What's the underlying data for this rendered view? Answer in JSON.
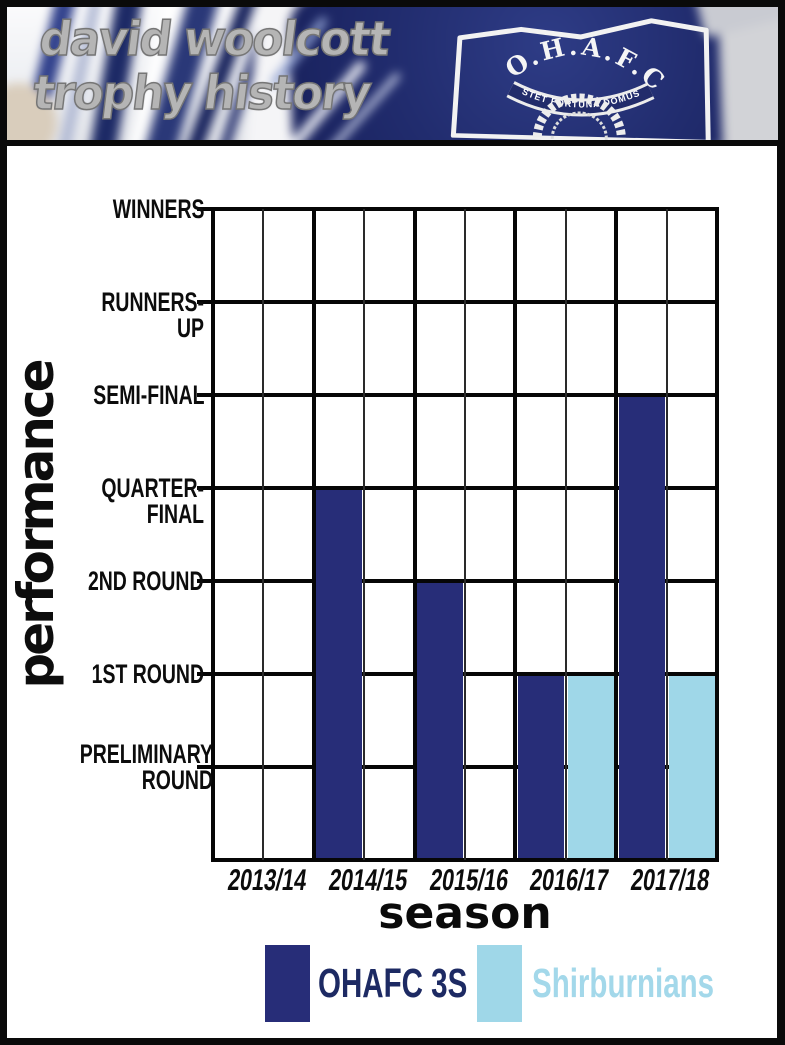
{
  "header": {
    "title_line1": "david woolcott",
    "title_line2": "trophy history",
    "badge": {
      "club_initials": "O.H.A.F.C.",
      "motto": "STET FORTUNA DOMUS"
    }
  },
  "chart_data": {
    "type": "bar",
    "title": "david woolcott trophy history",
    "xlabel": "season",
    "ylabel": "performance",
    "categories": [
      "2013/14",
      "2014/15",
      "2015/16",
      "2016/17",
      "2017/18"
    ],
    "y_tick_labels_top_to_bottom": [
      "WINNERS",
      "RUNNERS-UP",
      "SEMI-FINAL",
      "QUARTER-FINAL",
      "2ND ROUND",
      "1ST ROUND",
      "PRELIMINARY ROUND"
    ],
    "y_value_map": {
      "PRELIMINARY ROUND": 1,
      "1ST ROUND": 2,
      "2ND ROUND": 3,
      "QUARTER-FINAL": 4,
      "SEMI-FINAL": 5,
      "RUNNERS-UP": 6,
      "WINNERS": 7
    },
    "ylim": [
      0,
      7
    ],
    "grid": true,
    "legend_position": "bottom",
    "series": [
      {
        "name": "OHAFC 3S",
        "color": "#272d78",
        "text_color": "#1d2a63",
        "values": [
          0,
          4,
          3,
          2,
          5
        ],
        "result_labels": [
          "",
          "QUARTER-FINAL",
          "2ND ROUND",
          "1ST ROUND",
          "SEMI-FINAL"
        ]
      },
      {
        "name": "Shirburnians",
        "color": "#9fd7e8",
        "text_color": "#a3d8ea",
        "values": [
          0,
          0,
          0,
          2,
          2
        ],
        "result_labels": [
          "",
          "",
          "",
          "1ST ROUND",
          "1ST ROUND"
        ]
      }
    ]
  },
  "colors": {
    "frame": "#0a0a0a",
    "panel_background": "#ffffff",
    "grid": "#060606",
    "header_title_gray": "#b5b5b5",
    "fabric_navy": "#212c6e"
  }
}
